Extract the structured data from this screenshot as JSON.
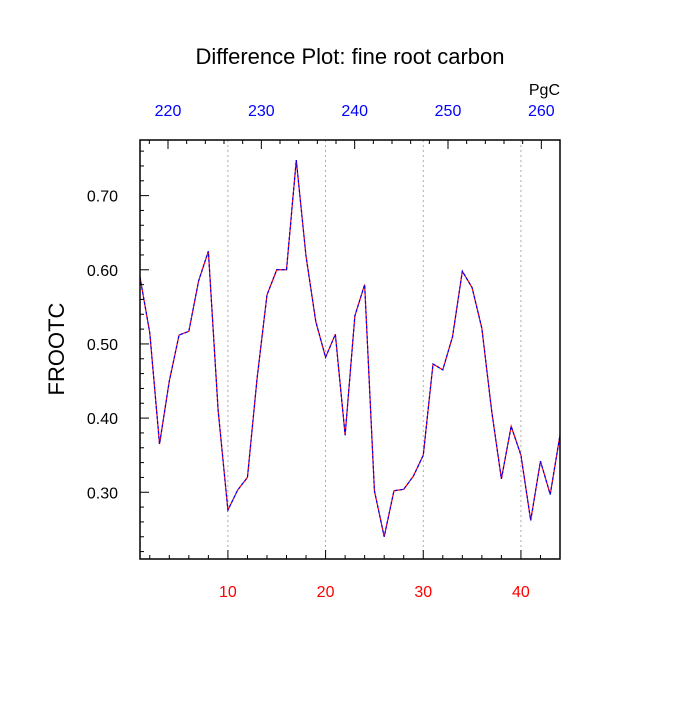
{
  "chart_data": {
    "type": "line",
    "title": "Difference Plot: fine root carbon",
    "ylabel": "FROOTC",
    "top_axis_unit": "PgC",
    "xlim": [
      1,
      44
    ],
    "ylim": [
      0.21,
      0.775
    ],
    "top_xlim": [
      217,
      262
    ],
    "x_ticks": [
      10,
      20,
      30,
      40
    ],
    "x_tick_labels": [
      "10",
      "20",
      "30",
      "40"
    ],
    "y_ticks": [
      0.3,
      0.4,
      0.5,
      0.6,
      0.7
    ],
    "y_tick_labels": [
      "0.30",
      "0.40",
      "0.50",
      "0.60",
      "0.70"
    ],
    "top_ticks": [
      220,
      230,
      240,
      250,
      260
    ],
    "top_tick_labels": [
      "220",
      "230",
      "240",
      "250",
      "260"
    ],
    "grid": "vertical dotted at bottom ticks",
    "colors": {
      "bottom_tick_labels": "#ff0000",
      "top_tick_labels": "#0000ff",
      "line_under": "#ff0000",
      "line_over": "#0000ff"
    },
    "series": [
      {
        "x": [
          1,
          2,
          3,
          4,
          5,
          6,
          7,
          8,
          9,
          10,
          11,
          12,
          13,
          14,
          15,
          16,
          17,
          18,
          19,
          20,
          21,
          22,
          23,
          24,
          25,
          26,
          27,
          28,
          29,
          30,
          31,
          32,
          33,
          34,
          35,
          36,
          37,
          38,
          39,
          40,
          41,
          42,
          43,
          44
        ],
        "values": [
          0.59,
          0.515,
          0.365,
          0.45,
          0.512,
          0.517,
          0.585,
          0.625,
          0.41,
          0.276,
          0.303,
          0.32,
          0.455,
          0.566,
          0.6,
          0.6,
          0.748,
          0.618,
          0.53,
          0.482,
          0.513,
          0.377,
          0.538,
          0.58,
          0.302,
          0.24,
          0.302,
          0.304,
          0.322,
          0.35,
          0.473,
          0.465,
          0.51,
          0.598,
          0.576,
          0.521,
          0.41,
          0.318,
          0.389,
          0.35,
          0.262,
          0.342,
          0.297,
          0.377
        ]
      }
    ]
  }
}
